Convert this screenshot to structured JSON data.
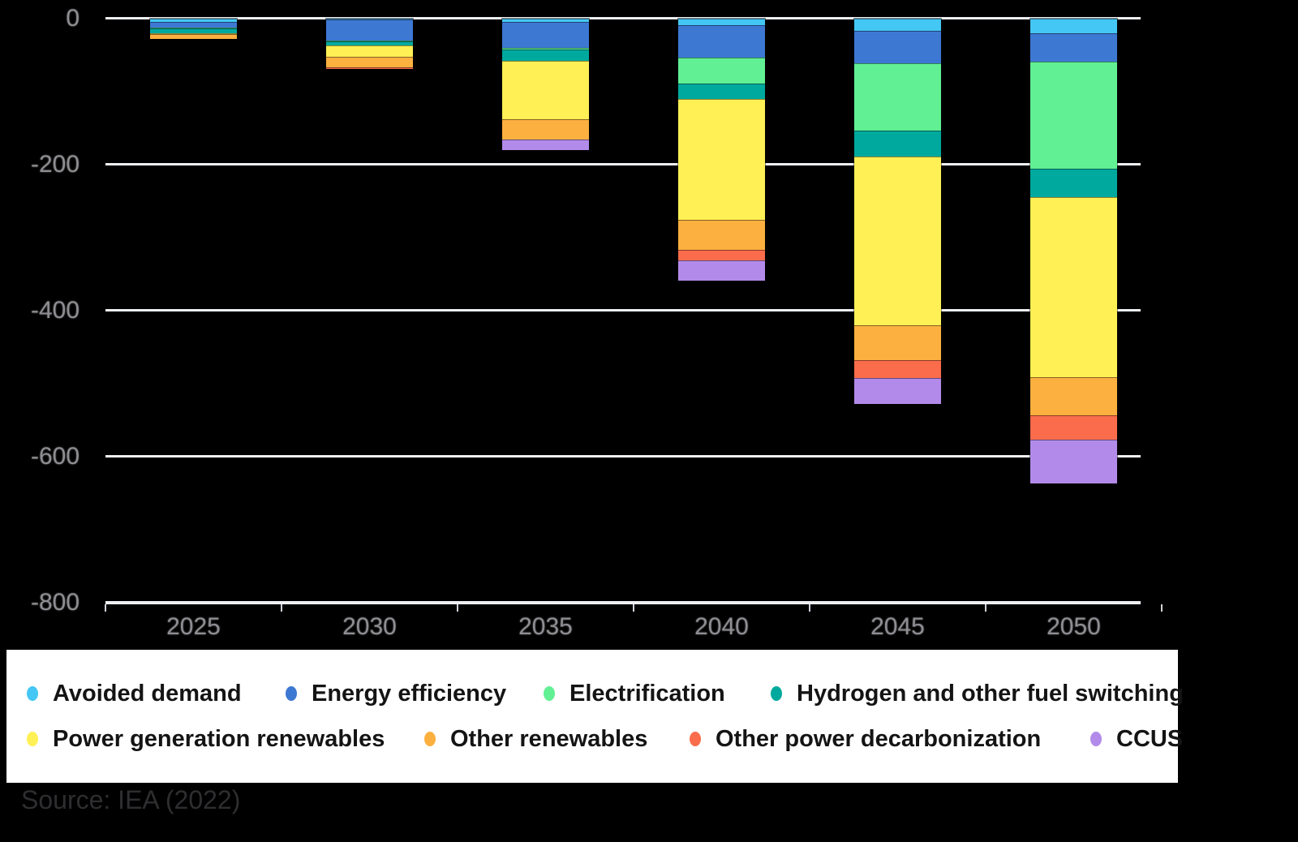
{
  "chart_data": {
    "type": "bar",
    "stacked": true,
    "title": "",
    "xlabel": "",
    "ylabel": "",
    "categories": [
      "2025",
      "2030",
      "2035",
      "2040",
      "2045",
      "2050"
    ],
    "series": [
      {
        "name": "Avoided demand",
        "color": "#44C7F4",
        "values": [
          -5,
          -1,
          -5,
          -9,
          -17,
          -21
        ]
      },
      {
        "name": "Energy efficiency",
        "color": "#3D78D3",
        "values": [
          -8,
          -29,
          -35,
          -45,
          -45,
          -38
        ]
      },
      {
        "name": "Electrification",
        "color": "#62F094",
        "values": [
          -1,
          -1,
          -3,
          -35,
          -92,
          -147
        ]
      },
      {
        "name": "Hydrogen and other fuel switching",
        "color": "#00A99D",
        "values": [
          -7,
          -6,
          -15,
          -22,
          -35,
          -39
        ]
      },
      {
        "name": "Power generation renewables",
        "color": "#FFF055",
        "values": [
          -1,
          -16,
          -80,
          -165,
          -232,
          -247
        ]
      },
      {
        "name": "Other renewables",
        "color": "#FBB040",
        "values": [
          -6,
          -14,
          -28,
          -41,
          -47,
          -52
        ]
      },
      {
        "name": "Other power decarbonization",
        "color": "#FA6C4B",
        "values": [
          0,
          -2,
          0,
          -15,
          -25,
          -33
        ]
      },
      {
        "name": "CCUS",
        "color": "#B28BEA",
        "values": [
          0,
          0,
          -15,
          -28,
          -35,
          -60
        ]
      }
    ],
    "ylim": [
      -800,
      0
    ],
    "yticks": [
      {
        "label": "0",
        "value": 0
      },
      {
        "label": "-200",
        "value": -200
      },
      {
        "label": "-400",
        "value": -400
      },
      {
        "label": "-600",
        "value": -600
      },
      {
        "label": "-800",
        "value": -800
      }
    ],
    "grid": true,
    "legend_position": "bottom"
  },
  "legend": {
    "rows": [
      [
        0,
        1,
        2,
        3
      ],
      [
        4,
        5,
        6,
        7
      ]
    ]
  },
  "source": {
    "text": "Source: IEA (2022)"
  }
}
